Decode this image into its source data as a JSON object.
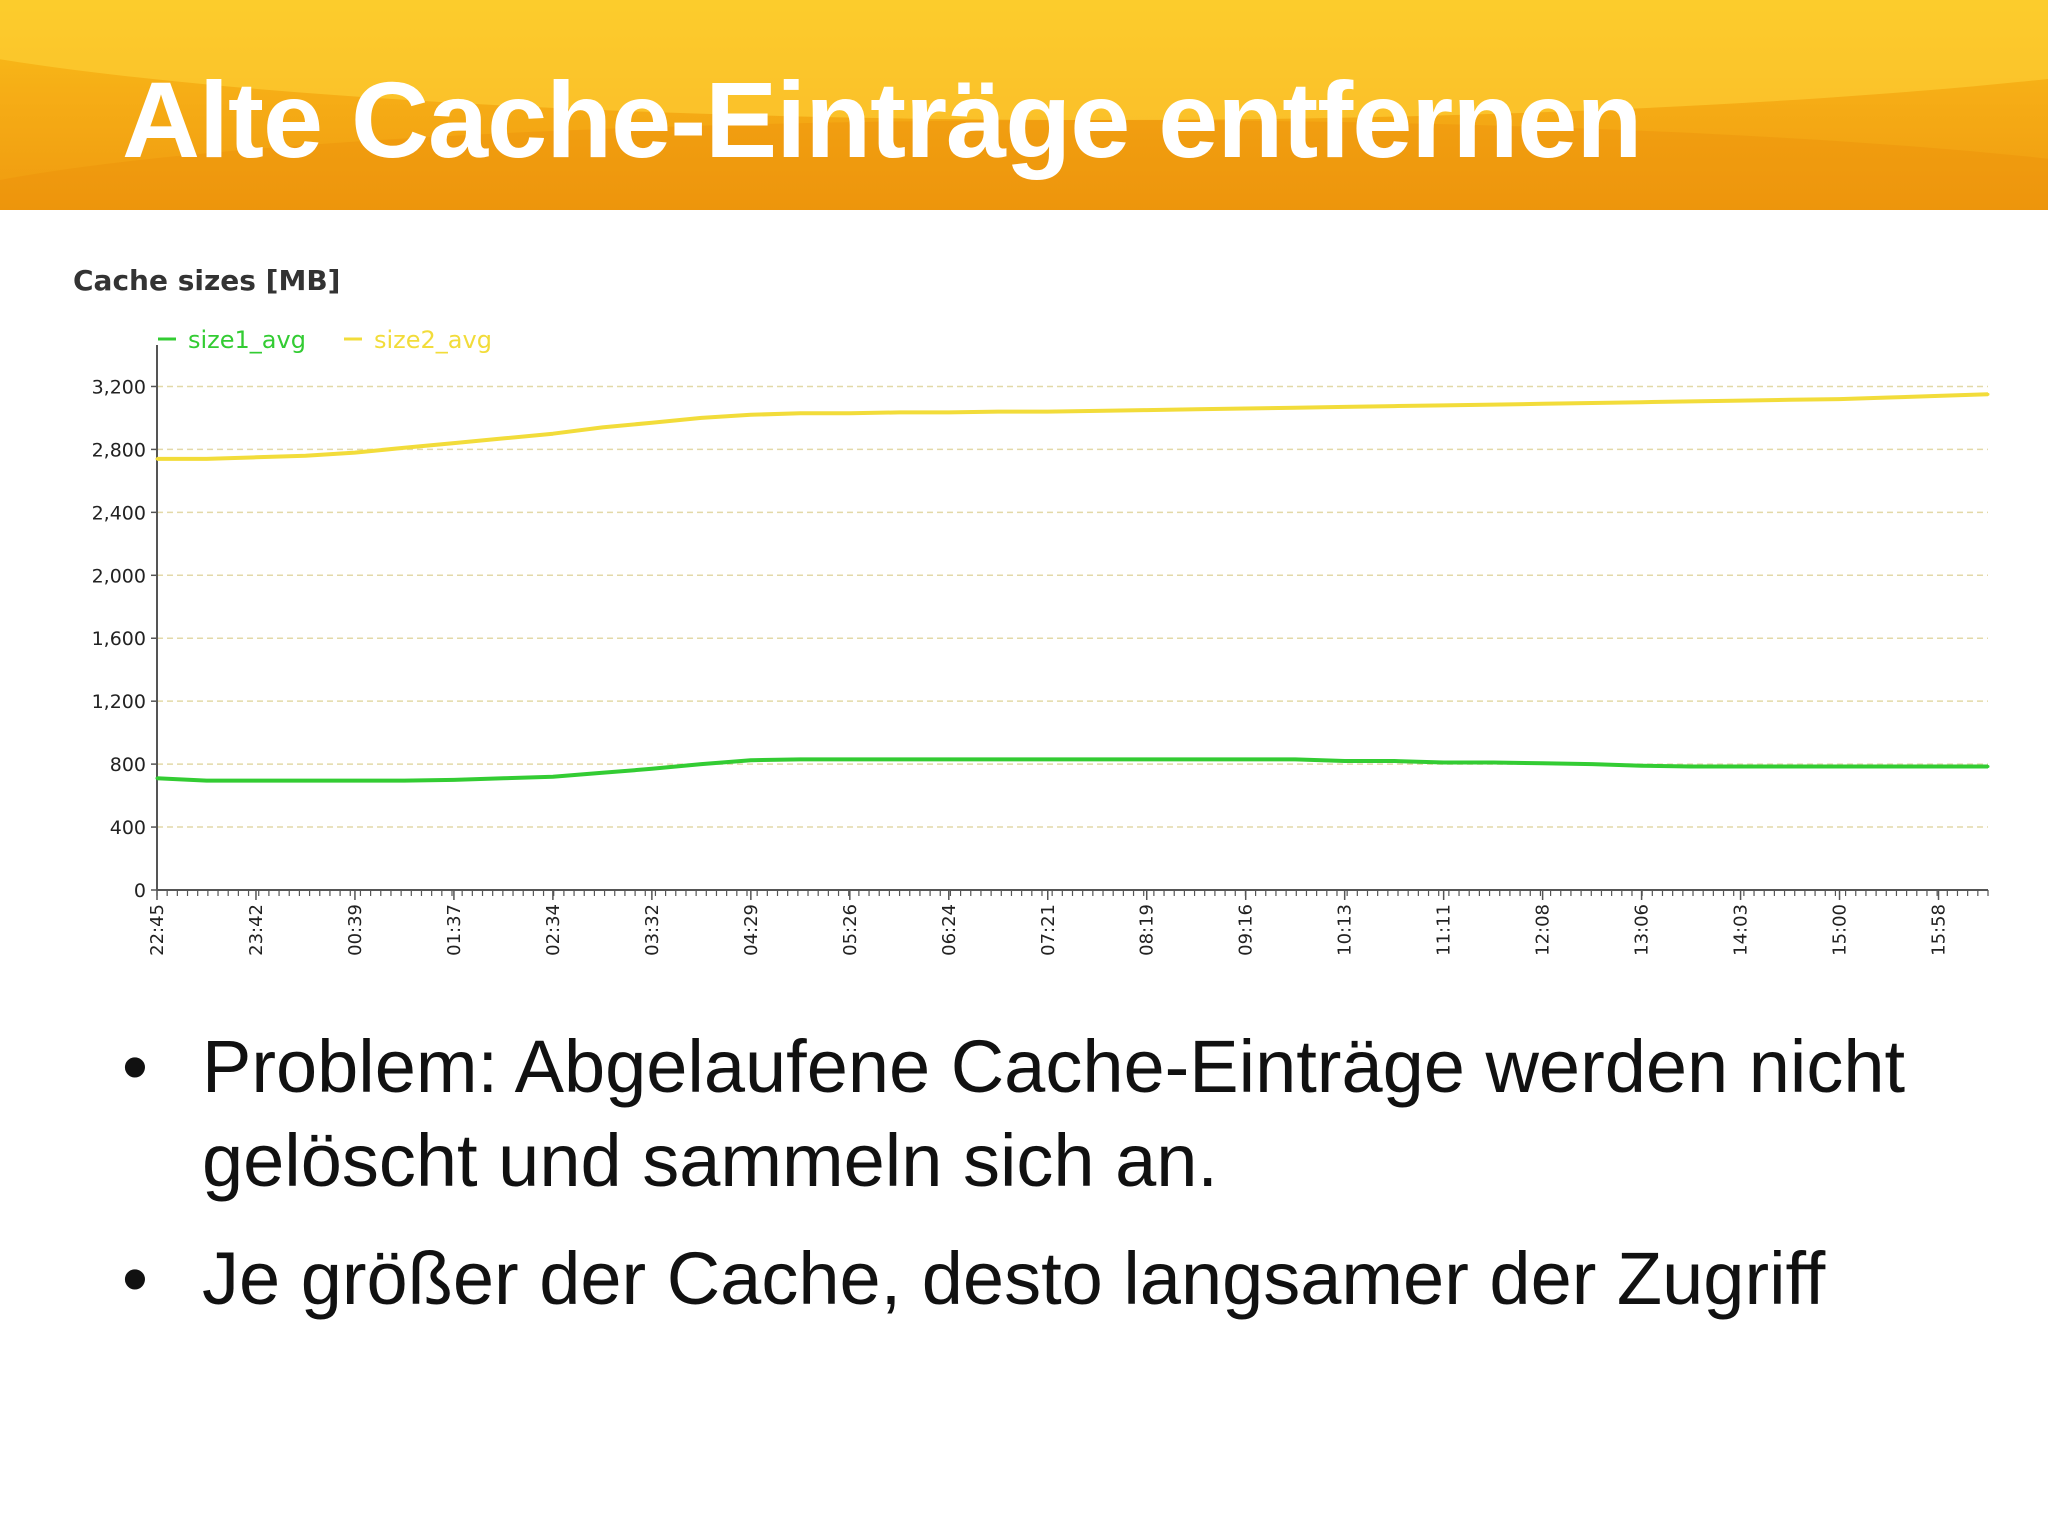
{
  "slide": {
    "title": "Alte Cache-Einträge entfernen",
    "bullets": [
      "Problem: Abgelaufene Cache-Einträge werden nicht gelöscht und sammeln sich an.",
      "Je größer der Cache, desto langsamer der Zugriff"
    ]
  },
  "colors": {
    "header": "#f6ad16",
    "size1": "#33cc33",
    "size2": "#f2dc3a",
    "grid": "#e3d9a8",
    "axis": "#555555"
  },
  "chart_data": {
    "type": "line",
    "title": "Cache sizes [MB]",
    "xlabel": "",
    "ylabel": "",
    "ylim": [
      0,
      3400
    ],
    "yticks": [
      0,
      400,
      800,
      1200,
      1600,
      2000,
      2400,
      2800,
      3200
    ],
    "ytick_labels": [
      "0",
      "400",
      "800",
      "1,200",
      "1,600",
      "2,000",
      "2,400",
      "2,800",
      "3,200"
    ],
    "x_tick_labels": [
      "22:45",
      "23:42",
      "00:39",
      "01:37",
      "02:34",
      "03:32",
      "04:29",
      "05:26",
      "06:24",
      "07:21",
      "08:19",
      "09:16",
      "10:13",
      "11:11",
      "12:08",
      "13:06",
      "14:03",
      "15:00",
      "15:58"
    ],
    "x": [
      "22:45",
      "23:13",
      "23:42",
      "00:10",
      "00:39",
      "01:08",
      "01:37",
      "02:05",
      "02:34",
      "03:03",
      "03:32",
      "04:00",
      "04:29",
      "04:57",
      "05:26",
      "05:55",
      "06:24",
      "06:52",
      "07:21",
      "07:50",
      "08:19",
      "08:47",
      "09:16",
      "09:44",
      "10:13",
      "10:42",
      "11:11",
      "11:39",
      "12:08",
      "12:37",
      "13:06",
      "13:34",
      "14:03",
      "14:31",
      "15:00",
      "15:29",
      "15:58",
      "16:26"
    ],
    "grid": true,
    "legend_position": "top-left",
    "series": [
      {
        "name": "size1_avg",
        "color": "#33cc33",
        "values": [
          710,
          695,
          695,
          695,
          695,
          695,
          700,
          710,
          720,
          745,
          770,
          800,
          825,
          830,
          830,
          830,
          830,
          830,
          830,
          830,
          830,
          830,
          830,
          830,
          820,
          820,
          810,
          810,
          805,
          800,
          790,
          785,
          785,
          785,
          785,
          785,
          785,
          785
        ]
      },
      {
        "name": "size2_avg",
        "color": "#f2dc3a",
        "values": [
          2740,
          2740,
          2750,
          2760,
          2780,
          2810,
          2840,
          2870,
          2900,
          2940,
          2970,
          3000,
          3020,
          3030,
          3030,
          3035,
          3035,
          3040,
          3040,
          3045,
          3050,
          3055,
          3060,
          3065,
          3070,
          3075,
          3080,
          3085,
          3090,
          3095,
          3100,
          3105,
          3110,
          3115,
          3120,
          3130,
          3140,
          3150
        ]
      }
    ]
  }
}
